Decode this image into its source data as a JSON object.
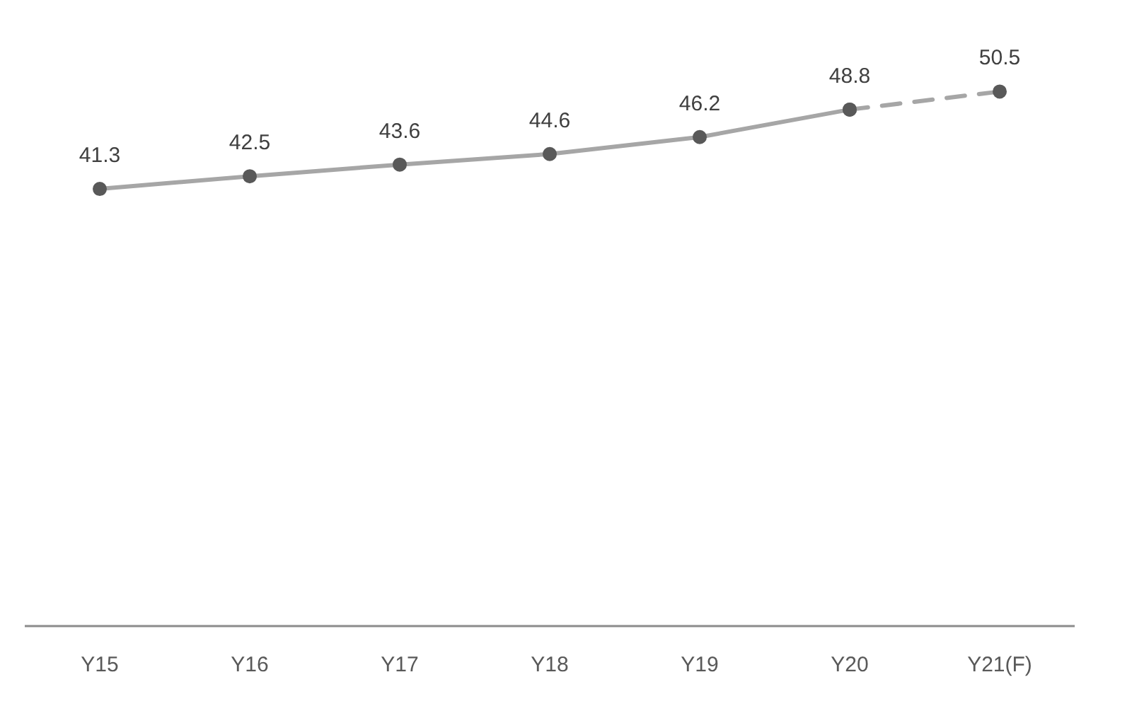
{
  "chart_data": {
    "type": "line",
    "categories": [
      "Y15",
      "Y16",
      "Y17",
      "Y18",
      "Y19",
      "Y20",
      "Y21(F)"
    ],
    "grid": false,
    "tick_labels": "x",
    "marker": "circle",
    "series": [
      {
        "color": "#a6a6a6",
        "colors": [
          "#595959",
          "#595959",
          "#595959",
          "#595959",
          "#595959",
          "#595959",
          "#595959"
        ],
        "values": [
          41.3,
          42.5,
          43.6,
          44.6,
          46.2,
          48.8,
          null
        ],
        "line_style": "solid",
        "value_labels": [
          "41.3",
          "42.5",
          "43.6",
          "44.6",
          "46.2",
          "48.8",
          null
        ]
      },
      {
        "color": "#a6a6a6",
        "colors": [
          "#595959",
          "#595959",
          "#595959",
          "#595959",
          "#595959",
          "#595959",
          "#595959"
        ],
        "values": [
          null,
          null,
          null,
          null,
          null,
          48.8,
          50.5
        ],
        "line_style": "dashed",
        "value_labels": [
          null,
          null,
          null,
          null,
          null,
          null,
          "50.5"
        ]
      }
    ]
  }
}
